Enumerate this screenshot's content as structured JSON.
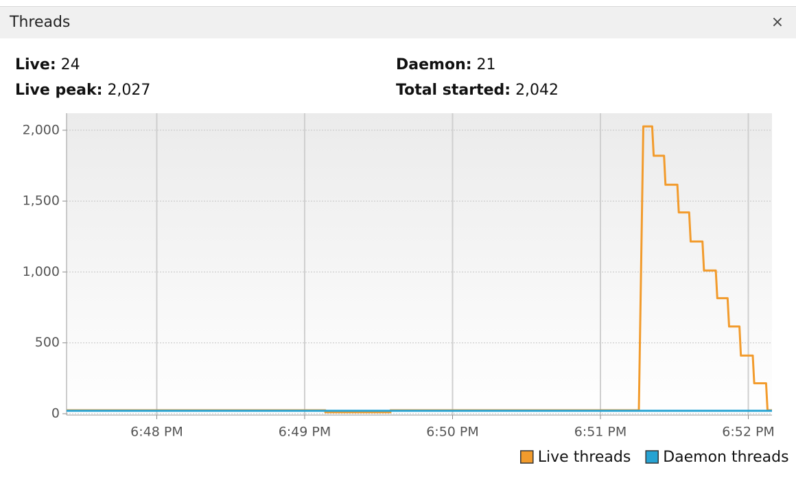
{
  "header": {
    "title": "Threads",
    "close": "×"
  },
  "stats": [
    {
      "label": "Live:",
      "value": "24"
    },
    {
      "label": "Daemon:",
      "value": "21"
    },
    {
      "label": "Live peak:",
      "value": "2,027"
    },
    {
      "label": "Total started:",
      "value": "2,042"
    }
  ],
  "chart_data": {
    "type": "line",
    "xlim": [
      47.39,
      52.16
    ],
    "xticks": [
      {
        "value": 48,
        "label": "6:48 PM"
      },
      {
        "value": 49,
        "label": "6:49 PM"
      },
      {
        "value": 50,
        "label": "6:50 PM"
      },
      {
        "value": 51,
        "label": "6:51 PM"
      },
      {
        "value": 52,
        "label": "6:52 PM"
      }
    ],
    "ylim": [
      0,
      2120
    ],
    "yticks": [
      0,
      500,
      {
        "value": 1000,
        "label": "1,000"
      },
      {
        "value": 1500,
        "label": "1,500"
      },
      {
        "value": 2000,
        "label": "2,000"
      }
    ],
    "grid": true,
    "legend": "bottom-right",
    "series": [
      {
        "name": "Live threads",
        "color": "#f29b2c",
        "x": [
          47.39,
          49.14,
          49.14,
          49.58,
          49.58,
          51.26,
          51.29,
          51.35,
          51.36,
          51.43,
          51.44,
          51.52,
          51.53,
          51.6,
          51.61,
          51.69,
          51.7,
          51.78,
          51.79,
          51.86,
          51.87,
          51.94,
          51.95,
          52.03,
          52.04,
          52.12,
          52.13,
          52.16
        ],
        "values": [
          24,
          24,
          10,
          10,
          24,
          24,
          2027,
          2027,
          1820,
          1820,
          1615,
          1615,
          1420,
          1420,
          1215,
          1215,
          1010,
          1010,
          815,
          815,
          615,
          615,
          410,
          410,
          215,
          215,
          24,
          24
        ]
      },
      {
        "name": "Daemon threads",
        "color": "#27a3d3",
        "x": [
          47.39,
          52.16
        ],
        "values": [
          21,
          21
        ]
      }
    ]
  }
}
